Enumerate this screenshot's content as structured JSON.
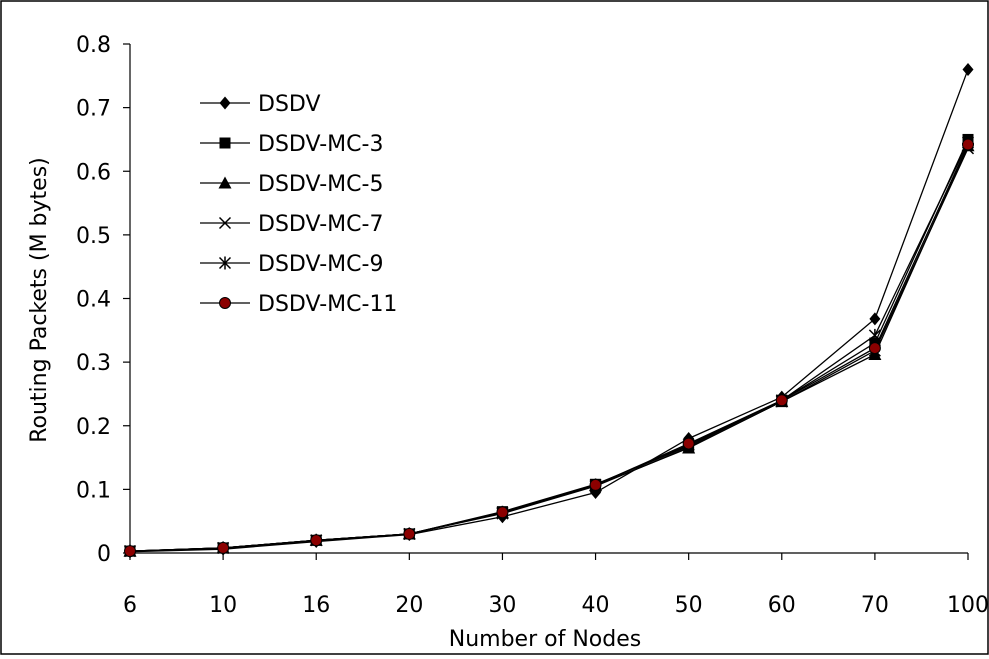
{
  "chart_data": {
    "type": "line",
    "title": "",
    "xlabel": "Number of Nodes",
    "ylabel": "Routing Packets (M bytes)",
    "categories": [
      "6",
      "10",
      "16",
      "20",
      "30",
      "40",
      "50",
      "60",
      "70",
      "100"
    ],
    "ylim": [
      0,
      0.8
    ],
    "yticks": [
      "0",
      "0.1",
      "0.2",
      "0.3",
      "0.4",
      "0.5",
      "0.6",
      "0.7",
      "0.8"
    ],
    "grid": false,
    "legend_position": "top-left",
    "series": [
      {
        "name": "DSDV",
        "marker": "diamond",
        "color": "#000000",
        "values": [
          0.002,
          0.006,
          0.018,
          0.029,
          0.057,
          0.095,
          0.18,
          0.245,
          0.368,
          0.76
        ]
      },
      {
        "name": "DSDV-MC-3",
        "marker": "square",
        "color": "#000000",
        "values": [
          0.003,
          0.008,
          0.02,
          0.03,
          0.065,
          0.108,
          0.168,
          0.24,
          0.33,
          0.65
        ]
      },
      {
        "name": "DSDV-MC-5",
        "marker": "triangle",
        "color": "#000000",
        "values": [
          0.003,
          0.008,
          0.02,
          0.03,
          0.063,
          0.106,
          0.165,
          0.238,
          0.312,
          0.64
        ]
      },
      {
        "name": "DSDV-MC-7",
        "marker": "x",
        "color": "#000000",
        "values": [
          0.003,
          0.008,
          0.02,
          0.03,
          0.062,
          0.105,
          0.166,
          0.238,
          0.318,
          0.636
        ]
      },
      {
        "name": "DSDV-MC-9",
        "marker": "asterisk",
        "color": "#000000",
        "values": [
          0.003,
          0.008,
          0.02,
          0.03,
          0.064,
          0.107,
          0.17,
          0.24,
          0.342,
          0.645
        ]
      },
      {
        "name": "DSDV-MC-11",
        "marker": "circle",
        "color": "#8b0000",
        "values": [
          0.003,
          0.008,
          0.02,
          0.03,
          0.064,
          0.107,
          0.172,
          0.24,
          0.322,
          0.642
        ]
      }
    ]
  }
}
